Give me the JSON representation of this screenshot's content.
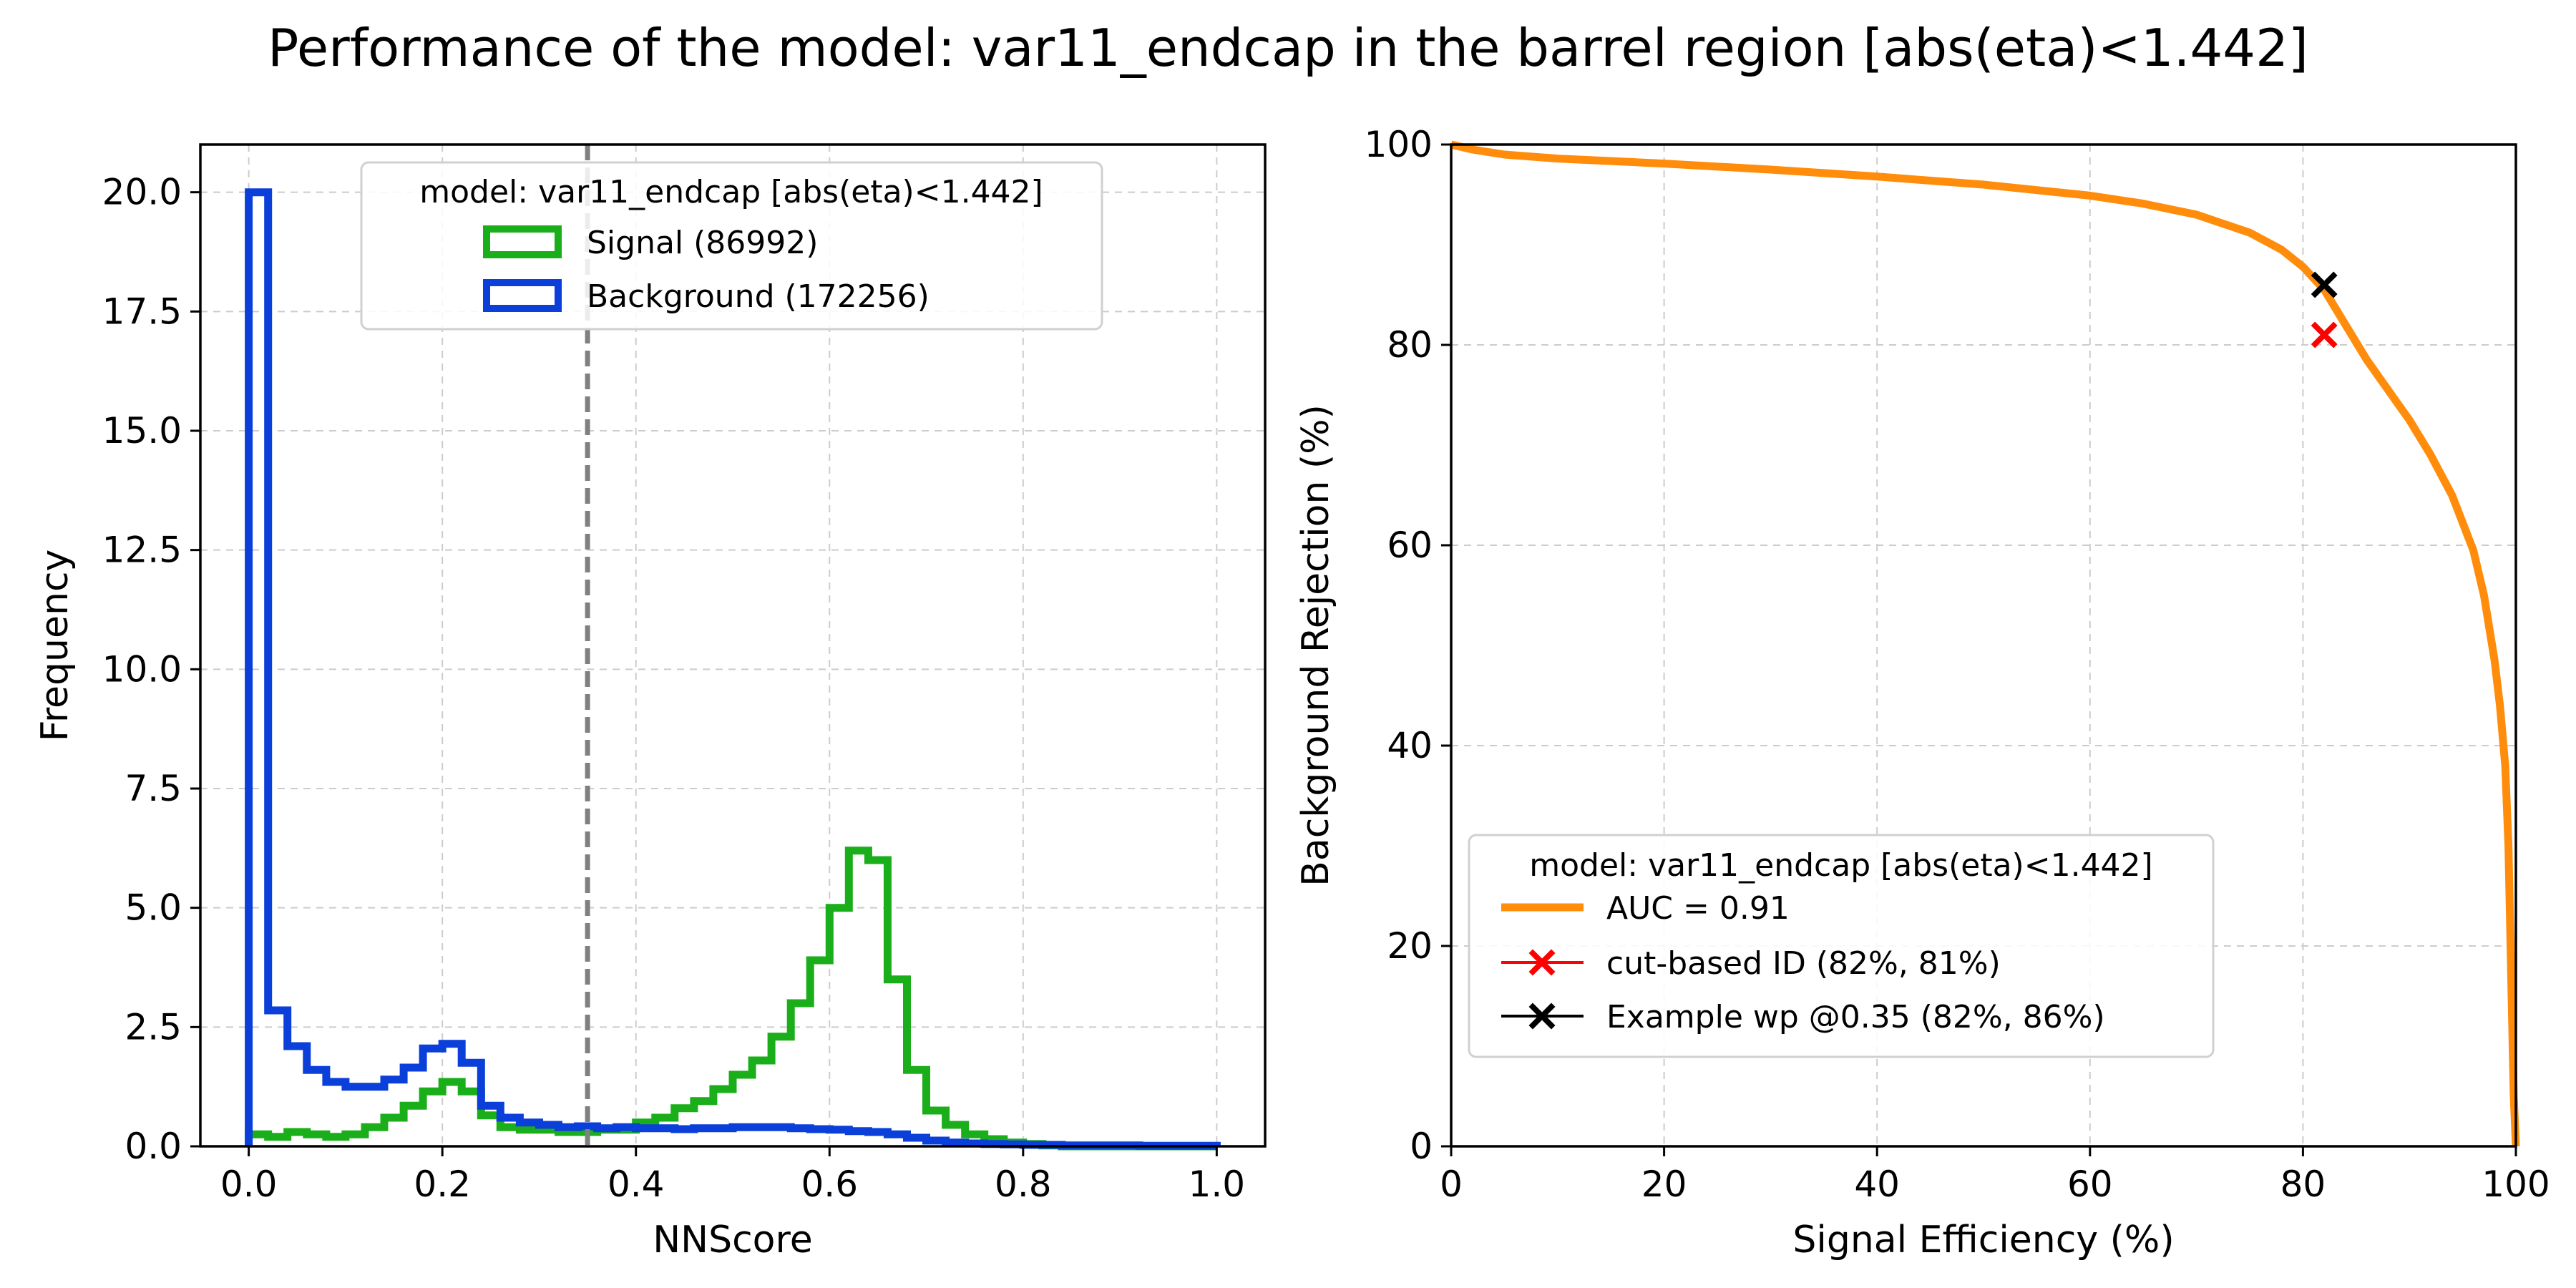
{
  "figure_title": "Performance of the model: var11_endcap in the barrel region [abs(eta)<1.442]",
  "chart_data": [
    {
      "type": "histogram",
      "xlabel": "NNScore",
      "ylabel": "Frequency",
      "xlim": [
        -0.05,
        1.05
      ],
      "ylim": [
        0,
        21
      ],
      "xticks": [
        "0.0",
        "0.2",
        "0.4",
        "0.6",
        "0.8",
        "1.0"
      ],
      "yticks": [
        "0.0",
        "2.5",
        "5.0",
        "7.5",
        "10.0",
        "12.5",
        "15.0",
        "17.5",
        "20.0"
      ],
      "grid": true,
      "cut_line_x": 0.35,
      "legend": {
        "title": "model: var11_endcap [abs(eta)<1.442]",
        "placement": "top-center"
      },
      "bin_edges_start": 0.0,
      "bin_width": 0.02,
      "series": [
        {
          "name": "Signal (86992)",
          "color": "#1aaf1a",
          "values": [
            0.25,
            0.2,
            0.3,
            0.25,
            0.2,
            0.25,
            0.4,
            0.6,
            0.85,
            1.15,
            1.35,
            1.15,
            0.65,
            0.4,
            0.35,
            0.35,
            0.3,
            0.3,
            0.35,
            0.35,
            0.5,
            0.6,
            0.8,
            0.95,
            1.2,
            1.5,
            1.8,
            2.3,
            3.0,
            3.9,
            5.0,
            6.2,
            6.0,
            3.5,
            1.6,
            0.75,
            0.45,
            0.25,
            0.15,
            0.08,
            0.05,
            0.02,
            0.0,
            0.0,
            0.0,
            0.0,
            0.0,
            0.0,
            0.0,
            0.0
          ]
        },
        {
          "name": "Background (172256)",
          "color": "#0a3fd9",
          "values": [
            20.0,
            2.85,
            2.1,
            1.6,
            1.35,
            1.25,
            1.25,
            1.4,
            1.65,
            2.05,
            2.15,
            1.75,
            0.85,
            0.6,
            0.5,
            0.45,
            0.4,
            0.42,
            0.38,
            0.4,
            0.38,
            0.38,
            0.36,
            0.38,
            0.38,
            0.4,
            0.4,
            0.4,
            0.38,
            0.36,
            0.35,
            0.32,
            0.3,
            0.25,
            0.18,
            0.12,
            0.08,
            0.06,
            0.05,
            0.04,
            0.03,
            0.03,
            0.02,
            0.02,
            0.02,
            0.02,
            0.01,
            0.01,
            0.01,
            0.01
          ]
        }
      ]
    },
    {
      "type": "line",
      "xlabel": "Signal Efficiency (%)",
      "ylabel": "Background Rejection (%)",
      "xlim": [
        0,
        100
      ],
      "ylim": [
        0,
        100
      ],
      "xticks": [
        "0",
        "20",
        "40",
        "60",
        "80",
        "100"
      ],
      "yticks": [
        "0",
        "20",
        "40",
        "60",
        "80",
        "100"
      ],
      "grid": true,
      "legend": {
        "title": "model: var11_endcap [abs(eta)<1.442]",
        "placement": "lower-left"
      },
      "series": [
        {
          "name": "AUC = 0.91",
          "color": "#ff8c0a",
          "x": [
            0,
            2,
            5,
            10,
            20,
            30,
            40,
            50,
            60,
            65,
            70,
            75,
            78,
            80,
            82,
            84,
            86,
            88,
            90,
            92,
            94,
            96,
            97,
            98,
            98.5,
            99,
            99.3,
            99.6,
            99.8,
            100
          ],
          "y": [
            100,
            99.5,
            99.0,
            98.6,
            98.1,
            97.5,
            96.8,
            96.0,
            94.9,
            94.1,
            93.0,
            91.2,
            89.5,
            87.8,
            85.5,
            82.0,
            78.5,
            75.5,
            72.5,
            69.0,
            65.0,
            59.5,
            55.0,
            48.5,
            44.0,
            38.0,
            30.0,
            15.0,
            5.0,
            0
          ]
        }
      ],
      "markers": [
        {
          "name": "cut-based ID (82%, 81%)",
          "x": 82,
          "y": 81,
          "color": "#ff0000",
          "marker": "X"
        },
        {
          "name": "Example wp @0.35 (82%, 86%)",
          "x": 82,
          "y": 86,
          "color": "#000000",
          "marker": "X"
        }
      ]
    }
  ]
}
